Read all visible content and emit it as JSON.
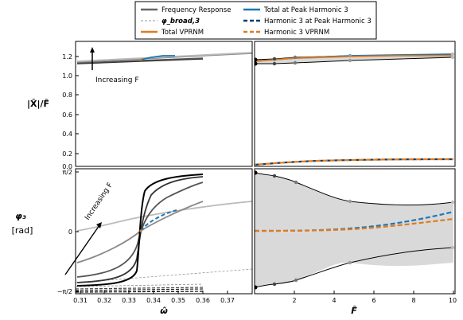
{
  "legend": [
    {
      "label": "Frequency Response",
      "color": "#666666",
      "dash": "solid"
    },
    {
      "label": "φ_broad,3",
      "color": "#999999",
      "dash": "dashed"
    },
    {
      "label": "Total VPRNM",
      "color": "#e07b1f",
      "dash": "solid"
    },
    {
      "label": "Total at Peak Harmonic 3",
      "color": "#1f77b4",
      "dash": "solid"
    },
    {
      "label": "Harmonic 3 at Peak Harmonic 3",
      "color": "#0b3d6b",
      "dash": "dashed"
    },
    {
      "label": "Harmonic 3 VPRNM",
      "color": "#e07b1f",
      "dash": "dashed"
    }
  ],
  "chart_data": [
    {
      "panel": "top-left",
      "type": "line",
      "ylabel": "|X̂|/F̂",
      "xlim": [
        0.306,
        0.378
      ],
      "ylim": [
        0,
        1.28
      ],
      "yticks": [
        "0.0",
        "0.2",
        "0.4",
        "0.6",
        "0.8",
        "1.0",
        "1.2"
      ],
      "annotation": "Increasing F",
      "series": [
        {
          "name": "Frequency Response",
          "color": "#303030",
          "x": [
            0.307,
            0.36
          ],
          "y": [
            1.12,
            1.15
          ]
        },
        {
          "name": "Frequency Response",
          "color": "#555555",
          "x": [
            0.307,
            0.36
          ],
          "y": [
            1.125,
            1.16
          ]
        },
        {
          "name": "Frequency Response",
          "color": "#888888",
          "x": [
            0.307,
            0.378
          ],
          "y": [
            1.13,
            1.215
          ]
        },
        {
          "name": "Frequency Response",
          "color": "#bbbbbb",
          "x": [
            0.307,
            0.378
          ],
          "y": [
            1.14,
            1.22
          ]
        },
        {
          "name": "Total at Peak Harmonic 3",
          "color": "#1f77b4",
          "x": [
            0.333,
            0.345,
            0.35
          ],
          "y": [
            1.16,
            1.185,
            1.19
          ]
        },
        {
          "name": "Total VPRNM",
          "color": "#e07b1f",
          "x": [
            0.333
          ],
          "y": [
            1.16
          ]
        }
      ]
    },
    {
      "panel": "top-right",
      "type": "line",
      "xlim": [
        0,
        10
      ],
      "ylim": [
        0,
        1.28
      ],
      "series": [
        {
          "name": "upper bound",
          "x": [
            0,
            1,
            2.2,
            4.5,
            10
          ],
          "y": [
            1.15,
            1.16,
            1.18,
            1.195,
            1.21
          ]
        },
        {
          "name": "lower bound",
          "x": [
            0,
            1,
            2.2,
            4.5,
            10
          ],
          "y": [
            1.1,
            1.1,
            1.105,
            1.13,
            1.18
          ]
        },
        {
          "name": "Total at Peak Harmonic 3",
          "x": [
            0,
            2,
            4,
            6,
            8,
            10
          ],
          "y": [
            1.13,
            1.15,
            1.175,
            1.19,
            1.2,
            1.2
          ]
        },
        {
          "name": "Total VPRNM",
          "x": [
            0,
            2,
            4,
            6,
            8,
            10
          ],
          "y": [
            1.13,
            1.16,
            1.18,
            1.185,
            1.19,
            1.19
          ]
        },
        {
          "name": "Harmonic 3 at Peak Harmonic 3",
          "x": [
            0,
            1,
            2,
            3,
            4,
            6,
            8,
            10
          ],
          "y": [
            0.005,
            0.01,
            0.02,
            0.03,
            0.04,
            0.055,
            0.06,
            0.06
          ]
        },
        {
          "name": "Harmonic 3 VPRNM",
          "x": [
            0,
            1,
            2,
            3,
            4,
            6,
            8,
            10
          ],
          "y": [
            0.005,
            0.01,
            0.02,
            0.03,
            0.04,
            0.055,
            0.06,
            0.06
          ]
        }
      ]
    },
    {
      "panel": "bottom-left",
      "type": "line",
      "xlabel": "ω̂",
      "ylabel": "φ₃",
      "ylabel_unit": "[rad]",
      "xlim": [
        0.306,
        0.378
      ],
      "xticks": [
        "0.31",
        "0.32",
        "0.33",
        "0.34",
        "0.35",
        "0.36",
        "0.37"
      ],
      "yticks": [
        "−π/2",
        "0",
        "π/2"
      ],
      "annotation": "Increasing F",
      "series": [
        {
          "name": "Frequency Response",
          "color": "#000000",
          "width": 5
        },
        {
          "name": "Frequency Response",
          "color": "#333333",
          "width": 3.5
        },
        {
          "name": "Frequency Response",
          "color": "#555555",
          "width": 2.2
        },
        {
          "name": "Frequency Response",
          "color": "#888888",
          "width": 1.4
        },
        {
          "name": "Frequency Response",
          "color": "#bbbbbb",
          "width": 0.8
        },
        {
          "name": "Total at Peak Harmonic 3",
          "color": "#1f77b4",
          "x": [
            0.333,
            0.34,
            0.345,
            0.35
          ],
          "y": [
            0.0,
            0.3,
            0.45,
            0.55
          ]
        },
        {
          "name": "Total VPRNM",
          "color": "#e07b1f",
          "x": [
            0.333
          ],
          "y": [
            0.0
          ]
        }
      ]
    },
    {
      "panel": "bottom-right",
      "type": "line",
      "xlabel": "F̂",
      "xlim": [
        0,
        10
      ],
      "xticks": [
        "2",
        "4",
        "6",
        "8",
        "10"
      ],
      "series": [
        {
          "name": "upper bound",
          "x": [
            0,
            1,
            2.2,
            4.5,
            10
          ],
          "y": [
            1.55,
            1.5,
            1.38,
            1.0,
            0.8
          ]
        },
        {
          "name": "lower bound",
          "x": [
            0,
            1,
            2.2,
            4.5,
            10
          ],
          "y": [
            -1.5,
            -1.45,
            -1.35,
            -0.85,
            -0.6
          ]
        },
        {
          "name": "Total at Peak Harmonic 3",
          "x": [
            0,
            2,
            4,
            6,
            8,
            10
          ],
          "y": [
            0.0,
            0.02,
            0.07,
            0.15,
            0.26,
            0.38
          ]
        },
        {
          "name": "Total VPRNM",
          "x": [
            0,
            2,
            4,
            6,
            8,
            10
          ],
          "y": [
            0.0,
            0.01,
            0.05,
            0.1,
            0.17,
            0.24
          ]
        }
      ]
    }
  ]
}
